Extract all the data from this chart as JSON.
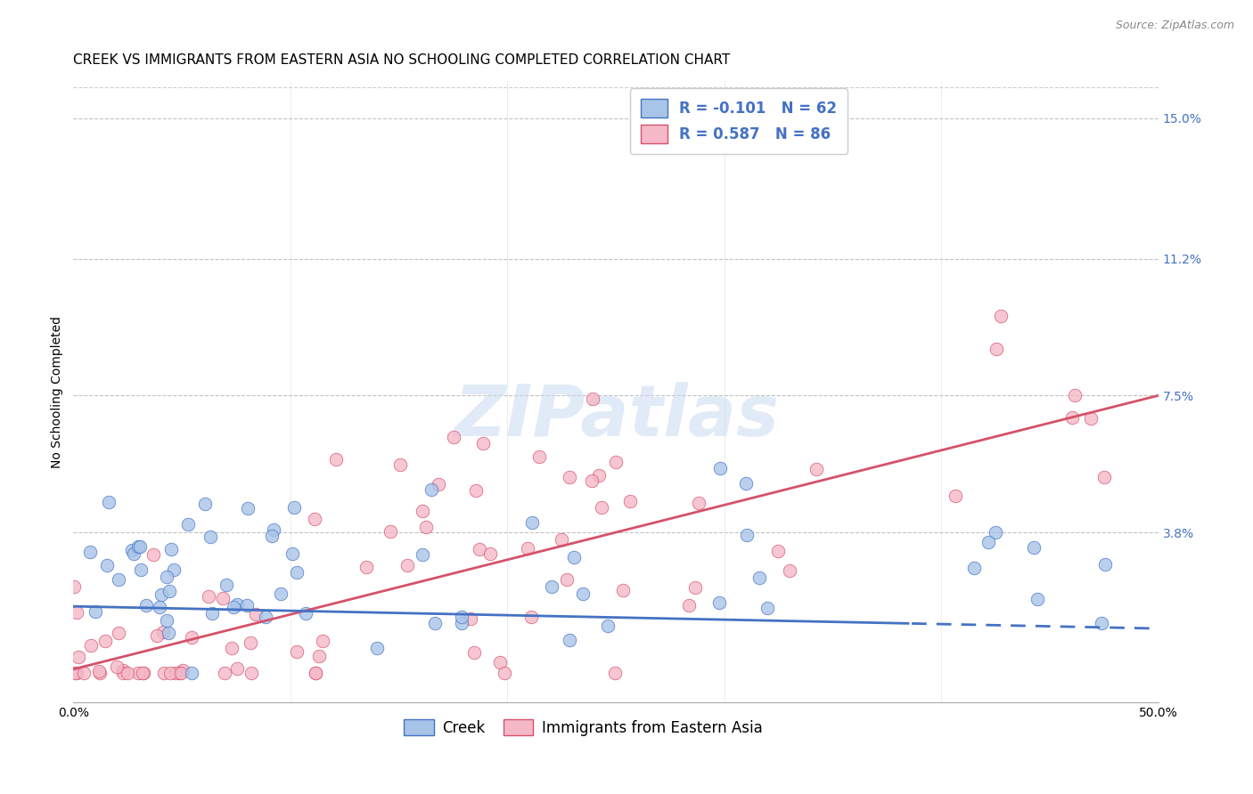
{
  "title": "CREEK VS IMMIGRANTS FROM EASTERN ASIA NO SCHOOLING COMPLETED CORRELATION CHART",
  "source": "Source: ZipAtlas.com",
  "ylabel_label": "No Schooling Completed",
  "ytick_labels": [
    "15.0%",
    "11.2%",
    "7.5%",
    "3.8%"
  ],
  "ytick_values": [
    0.15,
    0.112,
    0.075,
    0.038
  ],
  "xmin": 0.0,
  "xmax": 0.5,
  "ymin": -0.008,
  "ymax": 0.16,
  "creek_color": "#A8C4E8",
  "eastern_asia_color": "#F5B8C8",
  "creek_line_color": "#4472C4",
  "eastern_asia_line_color": "#D4526A",
  "background_color": "#FFFFFF",
  "watermark": "ZIPatlas",
  "legend_creek_R": "-0.101",
  "legend_creek_N": "62",
  "legend_east_R": "0.587",
  "legend_east_N": "86",
  "creek_R": -0.101,
  "creek_N": 62,
  "eastern_asia_R": 0.587,
  "eastern_asia_N": 86,
  "grid_color": "#CCCCCC",
  "grid_dash_color": "#BBBBBB",
  "title_fontsize": 11,
  "axis_label_fontsize": 10,
  "tick_fontsize": 10,
  "legend_fontsize": 12,
  "creek_line_y_at_x0": 0.018,
  "creek_line_y_at_x50": 0.012,
  "east_line_y_at_x0": 0.001,
  "east_line_y_at_x50": 0.075
}
